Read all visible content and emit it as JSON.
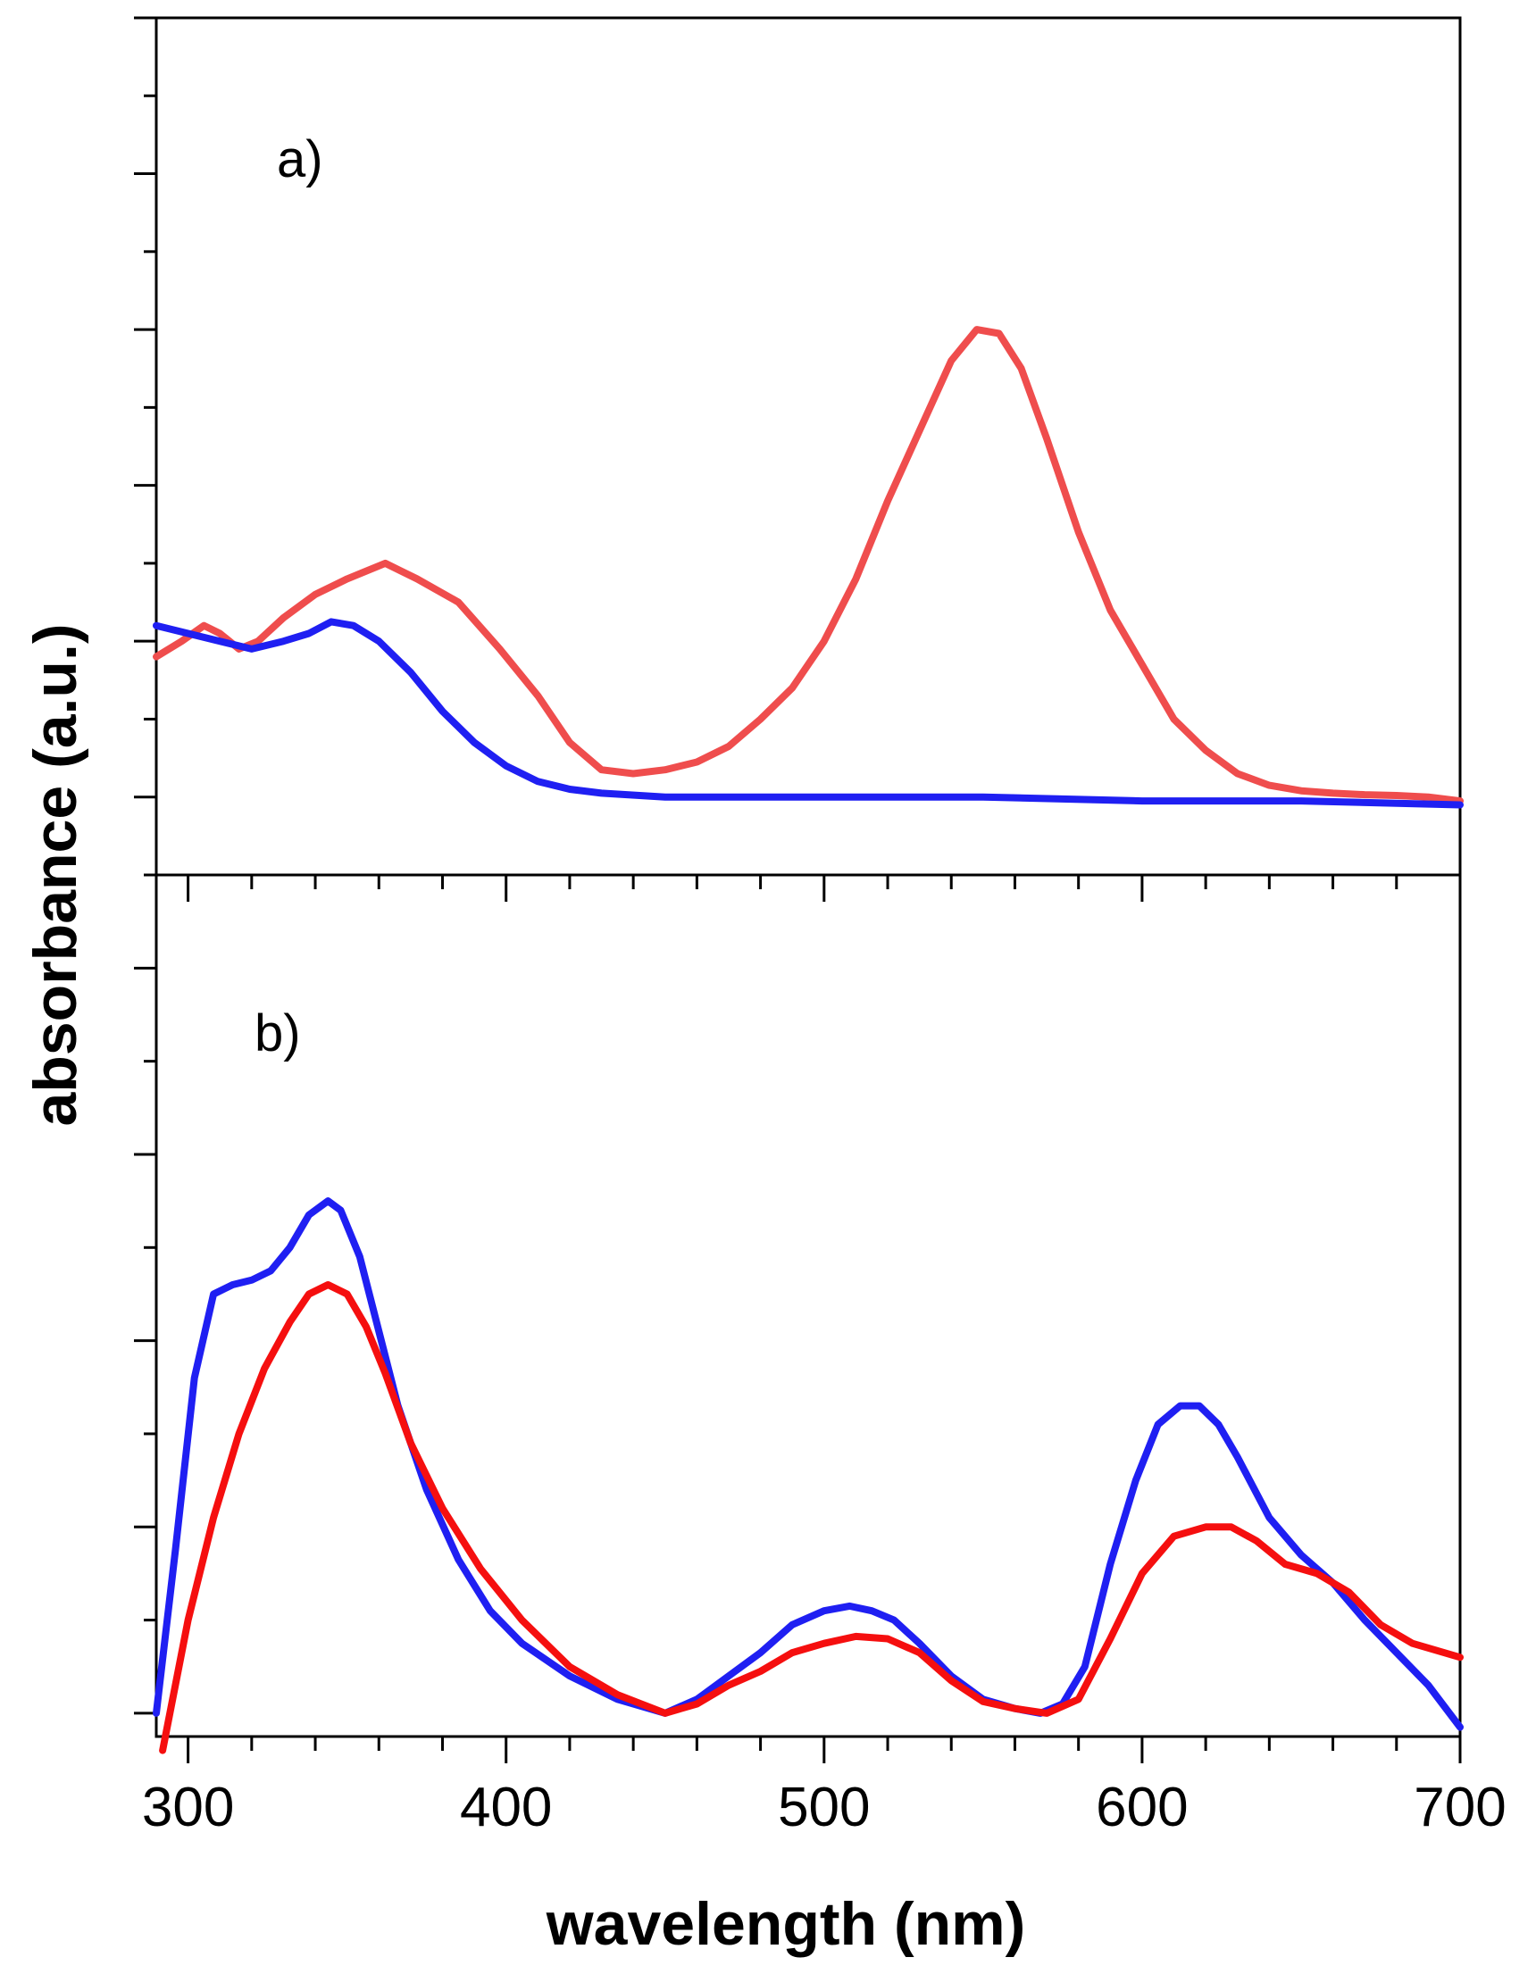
{
  "chart_data": [
    {
      "type": "line",
      "panel_label": "a)",
      "xlim": [
        290,
        700
      ],
      "ylim": [
        -0.1,
        1.0
      ],
      "yticks_major": [
        0.0,
        0.2,
        0.4,
        0.6,
        0.8,
        1.0
      ],
      "ytick_labels_shown": false,
      "series": [
        {
          "name": "red",
          "color": "#ef4d4d",
          "x": [
            290,
            298,
            305,
            310,
            316,
            322,
            330,
            340,
            350,
            362,
            372,
            385,
            398,
            410,
            420,
            430,
            440,
            450,
            460,
            470,
            480,
            490,
            500,
            510,
            520,
            530,
            540,
            548,
            555,
            562,
            570,
            580,
            590,
            600,
            610,
            620,
            630,
            640,
            650,
            660,
            670,
            680,
            690,
            700
          ],
          "y": [
            0.18,
            0.2,
            0.22,
            0.21,
            0.19,
            0.2,
            0.23,
            0.26,
            0.28,
            0.3,
            0.28,
            0.25,
            0.19,
            0.13,
            0.07,
            0.035,
            0.03,
            0.035,
            0.045,
            0.065,
            0.1,
            0.14,
            0.2,
            0.28,
            0.38,
            0.47,
            0.56,
            0.6,
            0.595,
            0.55,
            0.46,
            0.34,
            0.24,
            0.17,
            0.1,
            0.06,
            0.03,
            0.015,
            0.008,
            0.005,
            0.003,
            0.002,
            0.0,
            -0.005
          ]
        },
        {
          "name": "blue",
          "color": "#1f1ff2",
          "x": [
            290,
            300,
            310,
            320,
            330,
            338,
            345,
            352,
            360,
            370,
            380,
            390,
            400,
            410,
            420,
            430,
            450,
            500,
            550,
            600,
            650,
            700
          ],
          "y": [
            0.22,
            0.21,
            0.2,
            0.19,
            0.2,
            0.21,
            0.225,
            0.22,
            0.2,
            0.16,
            0.11,
            0.07,
            0.04,
            0.02,
            0.01,
            0.005,
            0.0,
            0.0,
            0.0,
            -0.005,
            -0.005,
            -0.01
          ]
        }
      ]
    },
    {
      "type": "line",
      "panel_label": "b)",
      "xlim": [
        290,
        700
      ],
      "ylim": [
        -0.05,
        1.8
      ],
      "yticks_major": [
        0.0,
        0.4,
        0.8,
        1.2,
        1.6
      ],
      "ytick_labels_shown": false,
      "xticks_major": [
        300,
        400,
        500,
        600,
        700
      ],
      "xtick_labels": [
        "300",
        "400",
        "500",
        "600",
        "700"
      ],
      "xlabel": "wavelength (nm)",
      "ylabel": "absorbance (a.u.)",
      "series": [
        {
          "name": "blue",
          "color": "#1f1ff2",
          "x": [
            290,
            296,
            302,
            308,
            314,
            320,
            326,
            332,
            338,
            344,
            348,
            354,
            360,
            366,
            375,
            385,
            395,
            405,
            420,
            435,
            450,
            460,
            470,
            480,
            490,
            500,
            508,
            515,
            522,
            530,
            540,
            550,
            560,
            568,
            575,
            582,
            590,
            598,
            605,
            612,
            618,
            624,
            630,
            640,
            650,
            660,
            670,
            680,
            690,
            700
          ],
          "y": [
            0.0,
            0.35,
            0.72,
            0.9,
            0.92,
            0.93,
            0.95,
            1.0,
            1.07,
            1.1,
            1.08,
            0.98,
            0.82,
            0.66,
            0.48,
            0.33,
            0.22,
            0.15,
            0.08,
            0.03,
            0.0,
            0.03,
            0.08,
            0.13,
            0.19,
            0.22,
            0.23,
            0.22,
            0.2,
            0.15,
            0.08,
            0.03,
            0.01,
            0.0,
            0.02,
            0.1,
            0.32,
            0.5,
            0.62,
            0.66,
            0.66,
            0.62,
            0.55,
            0.42,
            0.34,
            0.28,
            0.2,
            0.13,
            0.06,
            -0.03
          ]
        },
        {
          "name": "red",
          "color": "#f50f0f",
          "x": [
            292,
            300,
            308,
            316,
            324,
            332,
            338,
            344,
            350,
            356,
            362,
            370,
            380,
            392,
            405,
            420,
            435,
            450,
            460,
            470,
            480,
            490,
            500,
            510,
            520,
            530,
            540,
            550,
            560,
            570,
            580,
            590,
            600,
            610,
            620,
            628,
            636,
            645,
            655,
            665,
            675,
            685,
            700
          ],
          "y": [
            -0.08,
            0.2,
            0.42,
            0.6,
            0.74,
            0.84,
            0.9,
            0.92,
            0.9,
            0.83,
            0.73,
            0.58,
            0.44,
            0.31,
            0.2,
            0.1,
            0.04,
            0.0,
            0.02,
            0.06,
            0.09,
            0.13,
            0.15,
            0.165,
            0.16,
            0.13,
            0.07,
            0.025,
            0.01,
            0.0,
            0.03,
            0.16,
            0.3,
            0.38,
            0.4,
            0.4,
            0.37,
            0.32,
            0.3,
            0.26,
            0.19,
            0.15,
            0.12
          ]
        }
      ]
    }
  ]
}
